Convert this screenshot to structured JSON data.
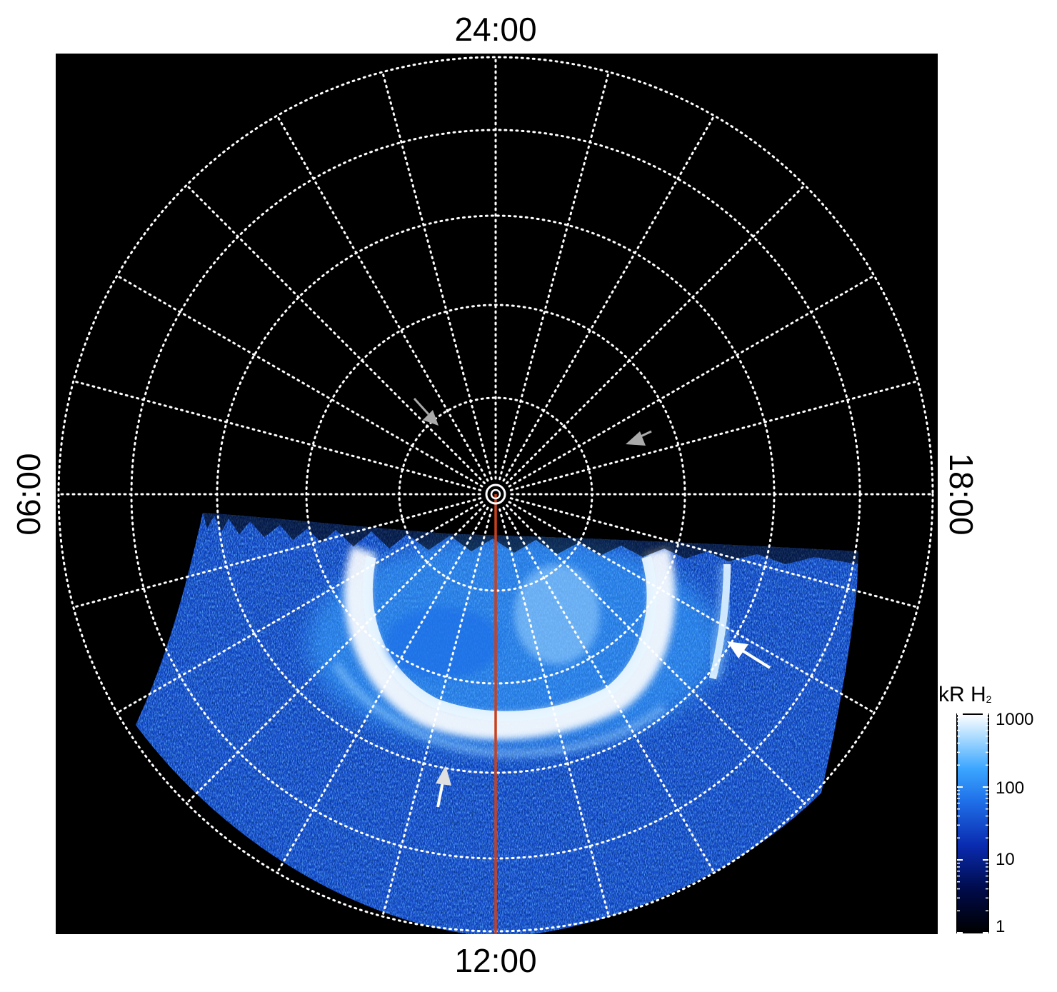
{
  "image": {
    "kind": "polar auroral emission map",
    "colormap": [
      "#000000",
      "#000b4a",
      "#0a2bb0",
      "#1f6fe8",
      "#3ba6ff",
      "#9fd6ff",
      "#ffffff"
    ],
    "grid_color": "#ffffff",
    "meridian_line_color": "#c8401c",
    "arrow_colors": {
      "white": "#ffffff",
      "gray": "#aaaaaa"
    }
  },
  "local_time_labels": {
    "top": "24:00",
    "bottom": "12:00",
    "left": "06:00",
    "right": "18:00"
  },
  "colorbar": {
    "title": "kR H",
    "title_sub": "2",
    "ticks": [
      "1000",
      "100",
      "10",
      "1"
    ],
    "scale": "log",
    "range": [
      1,
      1000
    ]
  }
}
